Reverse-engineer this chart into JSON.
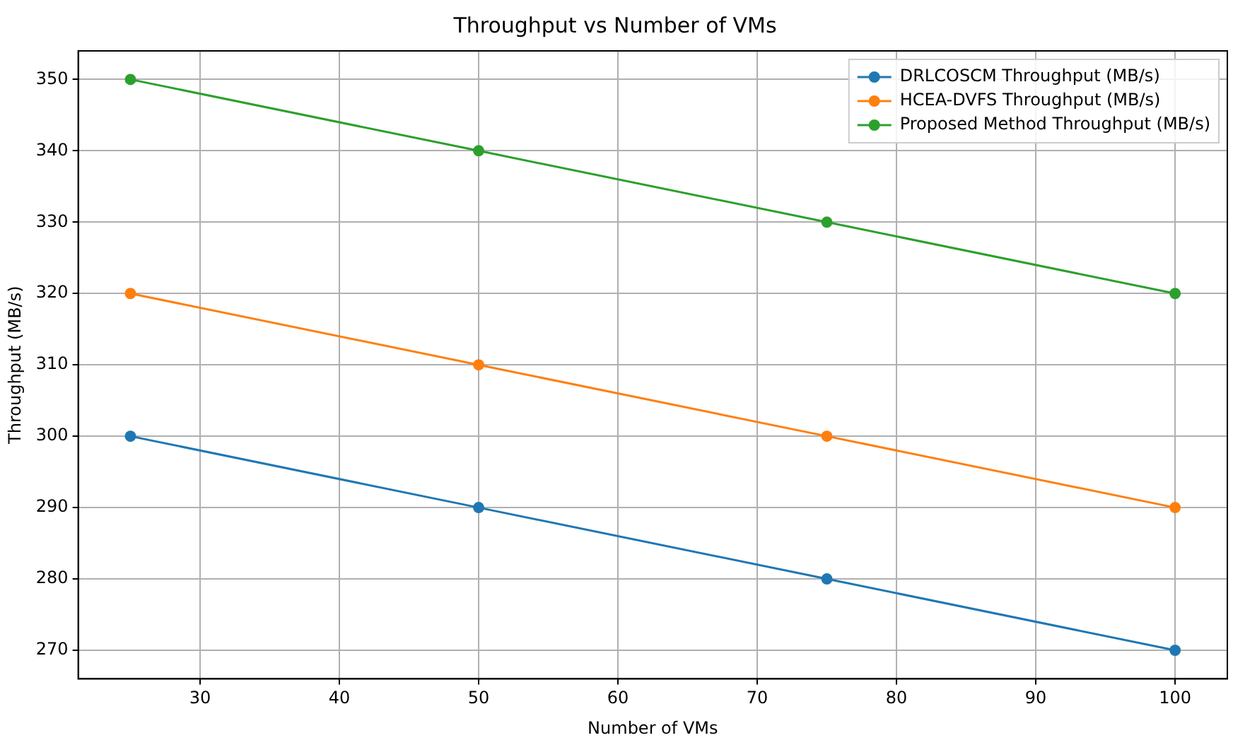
{
  "chart_data": {
    "type": "line",
    "title": "Throughput vs Number of VMs",
    "xlabel": "Number of VMs",
    "ylabel": "Throughput (MB/s)",
    "x": [
      25,
      50,
      75,
      100
    ],
    "series": [
      {
        "name": "DRLCOSCM Throughput (MB/s)",
        "color": "#1f77b4",
        "values": [
          300,
          290,
          280,
          270
        ]
      },
      {
        "name": "HCEA-DVFS Throughput (MB/s)",
        "color": "#ff7f0e",
        "values": [
          320,
          310,
          300,
          290
        ]
      },
      {
        "name": "Proposed Method Throughput (MB/s)",
        "color": "#2ca02c",
        "values": [
          350,
          340,
          330,
          320
        ]
      }
    ],
    "xlim": [
      21.25,
      103.75
    ],
    "xticks": [
      30,
      40,
      50,
      60,
      70,
      80,
      90,
      100
    ],
    "ylim": [
      266,
      354
    ],
    "yticks": [
      270,
      280,
      290,
      300,
      310,
      320,
      330,
      340,
      350
    ],
    "grid": true,
    "legend": "top right",
    "marker": "circle",
    "line_style": "solid"
  }
}
